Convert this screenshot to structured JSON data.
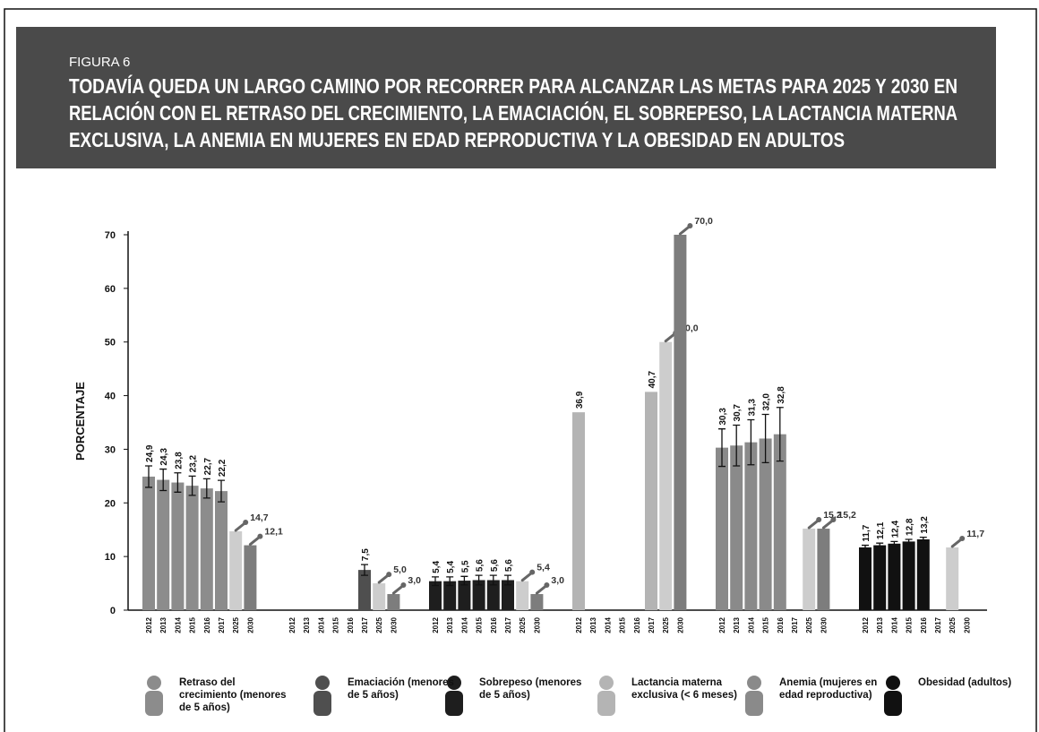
{
  "chart_data": {
    "type": "bar",
    "figure_label": "FIGURA 6",
    "title": [
      "TODAVÍA QUEDA UN LARGO CAMINO POR RECORRER PARA ALCANZAR LAS METAS PARA 2025 Y 2030 EN",
      "RELACIÓN CON EL RETRASO DEL CRECIMIENTO, LA EMACIACIÓN, EL SOBREPESO, LA LACTANCIA MATERNA",
      "EXCLUSIVA, LA ANEMIA EN MUJERES EN EDAD REPRODUCTIVA Y LA OBESIDAD EN ADULTOS"
    ],
    "ylabel": "PORCENTAJE",
    "ylim": [
      0,
      70
    ],
    "yticks": [
      0,
      10,
      20,
      30,
      40,
      50,
      60,
      70
    ],
    "categories": [
      "2012",
      "2013",
      "2014",
      "2015",
      "2016",
      "2017",
      "2025",
      "2030"
    ],
    "target_colors": [
      "#cdcdcd",
      "#7d7d7d"
    ],
    "series": [
      {
        "name": "Retraso del crecimiento (menores de 5 años)",
        "color": "#8c8c8c",
        "values": [
          24.9,
          24.3,
          23.8,
          23.2,
          22.7,
          22.2,
          14.7,
          12.1
        ],
        "value_labels": [
          "24,9",
          "24,3",
          "23,8",
          "23,2",
          "22,7",
          "22,2",
          "14,7",
          "12,1"
        ],
        "errors": [
          2,
          2,
          1.8,
          1.8,
          1.8,
          2,
          null,
          null
        ]
      },
      {
        "name": "Emaciación (menores de 5 años)",
        "color": "#4f4f4f",
        "values": [
          null,
          null,
          null,
          null,
          null,
          7.5,
          5.0,
          3.0
        ],
        "value_labels": [
          null,
          null,
          null,
          null,
          null,
          "7,5",
          "5,0",
          "3,0"
        ],
        "errors": [
          null,
          null,
          null,
          null,
          null,
          1,
          null,
          null
        ]
      },
      {
        "name": "Sobrepeso (menores de 5 años)",
        "color": "#1e1e1e",
        "values": [
          5.4,
          5.4,
          5.5,
          5.6,
          5.6,
          5.6,
          5.4,
          3.0
        ],
        "value_labels": [
          "5,4",
          "5,4",
          "5,5",
          "5,6",
          "5,6",
          "5,6",
          "5,4",
          "3,0"
        ],
        "errors": [
          0.8,
          0.8,
          0.8,
          0.9,
          0.9,
          0.9,
          null,
          null
        ]
      },
      {
        "name": "Lactancia materna exclusiva (< 6 meses)",
        "color": "#b4b4b4",
        "values": [
          36.9,
          null,
          null,
          null,
          null,
          40.7,
          50.0,
          70.0
        ],
        "value_labels": [
          "36,9",
          null,
          null,
          null,
          null,
          "40,7",
          "50,0",
          "70,0"
        ],
        "errors": [
          null,
          null,
          null,
          null,
          null,
          null,
          null,
          null
        ]
      },
      {
        "name": "Anemia (mujeres en edad reproductiva)",
        "color": "#8a8a8a",
        "values": [
          30.3,
          30.7,
          31.3,
          32.0,
          32.8,
          null,
          15.2,
          15.2
        ],
        "value_labels": [
          "30,3",
          "30,7",
          "31,3",
          "32,0",
          "32,8",
          null,
          "15,2",
          "15,2"
        ],
        "errors": [
          3.5,
          3.8,
          4.2,
          4.5,
          5,
          null,
          null,
          null
        ]
      },
      {
        "name": "Obesidad (adultos)",
        "color": "#111111",
        "values": [
          11.7,
          12.1,
          12.4,
          12.8,
          13.2,
          null,
          11.7,
          null
        ],
        "value_labels": [
          "11,7",
          "12,1",
          "12,4",
          "12,8",
          "13,2",
          null,
          "11,7",
          null
        ],
        "errors": [
          0.4,
          0.4,
          0.4,
          0.4,
          0.4,
          null,
          null,
          null
        ]
      }
    ]
  }
}
